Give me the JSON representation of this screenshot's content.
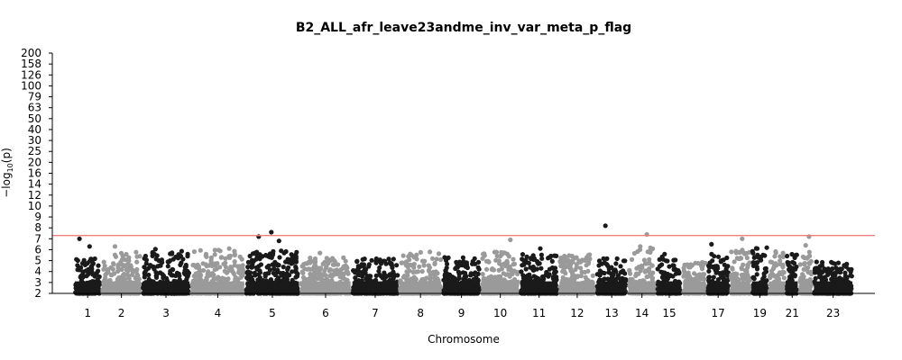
{
  "chart_data": {
    "type": "scatter",
    "title": "B2_ALL_afr_leave23andme_inv_var_meta_p_flag",
    "xlabel": "Chromosome",
    "ylabel_base": "−log",
    "ylabel_sub": "10",
    "ylabel_tail": "(p)",
    "y_ticks": [
      "2",
      "3",
      "4",
      "5",
      "6",
      "7",
      "8",
      "9",
      "10",
      "12",
      "14",
      "16",
      "20",
      "25",
      "30",
      "40",
      "50",
      "63",
      "79",
      "100",
      "126",
      "158",
      "200"
    ],
    "x_tick_labels": [
      "1",
      "2",
      "3",
      "4",
      "5",
      "6",
      "7",
      "8",
      "9",
      "10",
      "11",
      "12",
      "13",
      "14",
      "15",
      "17",
      "19",
      "21",
      "23"
    ],
    "x_tick_chromosomes": [
      1,
      2,
      3,
      4,
      5,
      6,
      7,
      8,
      9,
      10,
      11,
      12,
      13,
      14,
      15,
      17,
      19,
      21,
      23
    ],
    "chromosomes": [
      1,
      2,
      3,
      4,
      5,
      6,
      7,
      8,
      9,
      10,
      11,
      12,
      13,
      14,
      15,
      16,
      17,
      18,
      19,
      20,
      21,
      22,
      23
    ],
    "chromosome_spans": [
      [
        1,
        1.9
      ],
      [
        2,
        2.8
      ],
      [
        3,
        3.4
      ],
      [
        4,
        3.8
      ],
      [
        5,
        3.8
      ],
      [
        6,
        3.6
      ],
      [
        7,
        3.3
      ],
      [
        8,
        3.0
      ],
      [
        9,
        2.7
      ],
      [
        10,
        2.7
      ],
      [
        11,
        2.7
      ],
      [
        12,
        2.6
      ],
      [
        13,
        2.2
      ],
      [
        14,
        2.0
      ],
      [
        15,
        1.8
      ],
      [
        16,
        1.7
      ],
      [
        17,
        1.6
      ],
      [
        18,
        1.5
      ],
      [
        19,
        1.2
      ],
      [
        20,
        1.2
      ],
      [
        21,
        0.9
      ],
      [
        22,
        1.0
      ],
      [
        23,
        2.8
      ]
    ],
    "significance_threshold": 7.3,
    "base_peaks": [
      [
        1,
        5.2
      ],
      [
        2,
        5.8
      ],
      [
        3,
        6.1
      ],
      [
        4,
        6.0
      ],
      [
        5,
        5.9
      ],
      [
        6,
        5.3
      ],
      [
        7,
        5.2
      ],
      [
        8,
        5.8
      ],
      [
        9,
        5.3
      ],
      [
        10,
        5.8
      ],
      [
        11,
        5.6
      ],
      [
        12,
        5.6
      ],
      [
        13,
        5.3
      ],
      [
        14,
        6.3
      ],
      [
        15,
        5.6
      ],
      [
        16,
        4.9
      ],
      [
        17,
        5.6
      ],
      [
        18,
        6.0
      ],
      [
        19,
        6.2
      ],
      [
        20,
        6.0
      ],
      [
        21,
        5.6
      ],
      [
        22,
        5.9
      ],
      [
        23,
        5.0
      ]
    ],
    "top_hits": [
      {
        "chromosome": 1,
        "value": 7.0
      },
      {
        "chromosome": 1,
        "value": 6.3
      },
      {
        "chromosome": 2,
        "value": 6.3
      },
      {
        "chromosome": 4,
        "value": 6.1
      },
      {
        "chromosome": 5,
        "value": 7.6
      },
      {
        "chromosome": 5,
        "value": 7.2
      },
      {
        "chromosome": 5,
        "value": 6.8
      },
      {
        "chromosome": 6,
        "value": 5.7
      },
      {
        "chromosome": 10,
        "value": 6.9
      },
      {
        "chromosome": 11,
        "value": 6.1
      },
      {
        "chromosome": 13,
        "value": 8.2
      },
      {
        "chromosome": 14,
        "value": 7.4
      },
      {
        "chromosome": 14,
        "value": 6.3
      },
      {
        "chromosome": 17,
        "value": 6.5
      },
      {
        "chromosome": 18,
        "value": 7.0
      },
      {
        "chromosome": 19,
        "value": 6.1
      },
      {
        "chromosome": 22,
        "value": 7.2
      },
      {
        "chromosome": 22,
        "value": 6.4
      }
    ],
    "colors": {
      "odd_chromosome": "#1a1a1a",
      "even_chromosome": "#9a9a9a",
      "threshold_line": "#f08080",
      "axis": "#000000"
    },
    "grid": false,
    "legend": "none"
  }
}
